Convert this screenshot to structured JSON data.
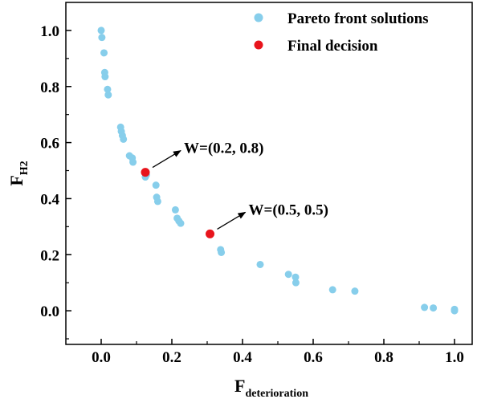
{
  "chart_data": {
    "type": "scatter",
    "title": "",
    "xlabel": {
      "main": "F",
      "sub": "deterioration"
    },
    "ylabel": {
      "main": "F",
      "sub": "H2"
    },
    "xlim": [
      -0.1,
      1.05
    ],
    "ylim": [
      -0.12,
      1.1
    ],
    "xticks": [
      0.0,
      0.2,
      0.4,
      0.6,
      0.8,
      1.0
    ],
    "xtick_labels": [
      "0.0",
      "0.2",
      "0.4",
      "0.6",
      "0.8",
      "1.0"
    ],
    "yticks": [
      0.0,
      0.2,
      0.4,
      0.6,
      0.8,
      1.0
    ],
    "ytick_labels": [
      "0.0",
      "0.2",
      "0.4",
      "0.6",
      "0.8",
      "1.0"
    ],
    "grid": false,
    "legend_position": "top-right",
    "series": [
      {
        "name": "Pareto front solutions",
        "color": "#87ceeb",
        "points": [
          [
            0.0,
            1.0
          ],
          [
            0.002,
            0.975
          ],
          [
            0.008,
            0.92
          ],
          [
            0.01,
            0.85
          ],
          [
            0.011,
            0.835
          ],
          [
            0.018,
            0.79
          ],
          [
            0.02,
            0.77
          ],
          [
            0.055,
            0.655
          ],
          [
            0.057,
            0.64
          ],
          [
            0.06,
            0.625
          ],
          [
            0.063,
            0.612
          ],
          [
            0.08,
            0.553
          ],
          [
            0.088,
            0.545
          ],
          [
            0.09,
            0.53
          ],
          [
            0.125,
            0.477
          ],
          [
            0.128,
            0.485
          ],
          [
            0.155,
            0.448
          ],
          [
            0.157,
            0.405
          ],
          [
            0.16,
            0.39
          ],
          [
            0.21,
            0.36
          ],
          [
            0.215,
            0.33
          ],
          [
            0.22,
            0.32
          ],
          [
            0.225,
            0.312
          ],
          [
            0.338,
            0.218
          ],
          [
            0.34,
            0.208
          ],
          [
            0.45,
            0.165
          ],
          [
            0.53,
            0.13
          ],
          [
            0.55,
            0.12
          ],
          [
            0.551,
            0.1
          ],
          [
            0.655,
            0.075
          ],
          [
            0.718,
            0.07
          ],
          [
            0.915,
            0.012
          ],
          [
            0.94,
            0.01
          ],
          [
            1.0,
            0.005
          ],
          [
            1.0,
            0.0
          ]
        ]
      },
      {
        "name": "Final decision",
        "color": "#e8141c",
        "points": [
          [
            0.125,
            0.494
          ],
          [
            0.308,
            0.274
          ]
        ]
      }
    ],
    "annotations": [
      {
        "text": "W=(0.2, 0.8)",
        "point": [
          0.125,
          0.494
        ]
      },
      {
        "text": "W=(0.5, 0.5)",
        "point": [
          0.308,
          0.274
        ]
      }
    ]
  }
}
